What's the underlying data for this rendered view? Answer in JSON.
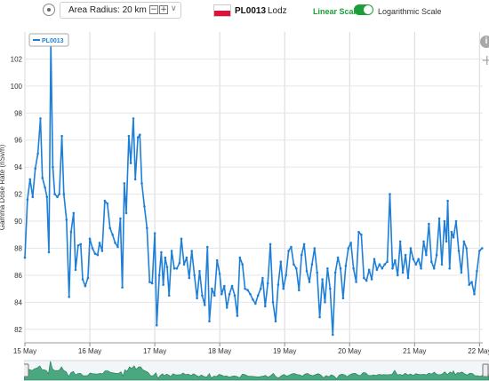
{
  "toolbar": {
    "radius_label": "Area Radius: 20 km",
    "minus_icon": "−",
    "plus_icon": "+",
    "chevron": "∨",
    "station_code": "PL0013",
    "station_city": "Lodz",
    "scale_linear": "Linear Scale",
    "scale_log": "Logarithmic Scale",
    "accent_color": "#1e9e3a"
  },
  "side_icons": {
    "info": "i",
    "plus": "+"
  },
  "chart_data": {
    "type": "line",
    "ylabel": "Gamma Dose Rate (nSv/h)",
    "ylim": [
      81,
      104
    ],
    "yticks": [
      "82",
      "84",
      "86",
      "88",
      "90",
      "92",
      "94",
      "96",
      "98",
      "100",
      "102"
    ],
    "xlim": [
      15,
      22.05
    ],
    "xticks": [
      {
        "v": 15,
        "label": "15 May"
      },
      {
        "v": 16,
        "label": "16 May"
      },
      {
        "v": 17,
        "label": "17 May"
      },
      {
        "v": 18,
        "label": "18 May"
      },
      {
        "v": 19,
        "label": "19 May"
      },
      {
        "v": 20,
        "label": "20 May"
      },
      {
        "v": 21,
        "label": "21 May"
      },
      {
        "v": 22,
        "label": "22 May"
      }
    ],
    "series": [
      {
        "name": "PL0013",
        "color": "#1e7fd8",
        "points": [
          [
            15.0,
            87.3
          ],
          [
            15.04,
            91.6
          ],
          [
            15.08,
            93.1
          ],
          [
            15.12,
            91.8
          ],
          [
            15.16,
            93.9
          ],
          [
            15.2,
            95.0
          ],
          [
            15.24,
            97.6
          ],
          [
            15.27,
            93.2
          ],
          [
            15.31,
            92.5
          ],
          [
            15.34,
            91.8
          ],
          [
            15.37,
            87.7
          ],
          [
            15.4,
            103.2
          ],
          [
            15.43,
            94.0
          ],
          [
            15.46,
            92.0
          ],
          [
            15.5,
            91.8
          ],
          [
            15.53,
            92.0
          ],
          [
            15.57,
            96.3
          ],
          [
            15.6,
            92.0
          ],
          [
            15.64,
            90.1
          ],
          [
            15.68,
            84.4
          ],
          [
            15.71,
            89.2
          ],
          [
            15.75,
            90.6
          ],
          [
            15.78,
            86.4
          ],
          [
            15.82,
            88.2
          ],
          [
            15.86,
            88.3
          ],
          [
            15.89,
            85.7
          ],
          [
            15.93,
            85.2
          ],
          [
            15.97,
            85.8
          ],
          [
            16.0,
            88.7
          ],
          [
            16.04,
            88.0
          ],
          [
            16.08,
            87.6
          ],
          [
            16.12,
            87.5
          ],
          [
            16.15,
            88.4
          ],
          [
            16.19,
            87.8
          ],
          [
            16.23,
            91.5
          ],
          [
            16.27,
            91.3
          ],
          [
            16.31,
            89.5
          ],
          [
            16.35,
            89.0
          ],
          [
            16.39,
            88.4
          ],
          [
            16.43,
            88.1
          ],
          [
            16.47,
            90.2
          ],
          [
            16.5,
            85.1
          ],
          [
            16.53,
            92.8
          ],
          [
            16.56,
            90.6
          ],
          [
            16.6,
            96.3
          ],
          [
            16.63,
            94.3
          ],
          [
            16.67,
            97.6
          ],
          [
            16.7,
            93.1
          ],
          [
            16.74,
            96.2
          ],
          [
            16.77,
            96.4
          ],
          [
            16.8,
            92.8
          ],
          [
            16.84,
            91.1
          ],
          [
            16.88,
            89.5
          ],
          [
            16.92,
            85.5
          ],
          [
            16.96,
            85.4
          ],
          [
            17.0,
            89.1
          ],
          [
            17.03,
            82.3
          ],
          [
            17.07,
            86.0
          ],
          [
            17.1,
            87.7
          ],
          [
            17.13,
            85.3
          ],
          [
            17.16,
            87.3
          ],
          [
            17.19,
            86.6
          ],
          [
            17.22,
            84.5
          ],
          [
            17.26,
            87.8
          ],
          [
            17.3,
            86.5
          ],
          [
            17.34,
            86.5
          ],
          [
            17.38,
            86.9
          ],
          [
            17.41,
            88.7
          ],
          [
            17.45,
            86.8
          ],
          [
            17.49,
            87.3
          ],
          [
            17.53,
            85.8
          ],
          [
            17.57,
            87.8
          ],
          [
            17.61,
            86.0
          ],
          [
            17.65,
            84.3
          ],
          [
            17.69,
            86.3
          ],
          [
            17.73,
            84.5
          ],
          [
            17.77,
            83.8
          ],
          [
            17.81,
            88.1
          ],
          [
            17.84,
            82.6
          ],
          [
            17.88,
            85.0
          ],
          [
            17.92,
            84.5
          ],
          [
            17.96,
            87.1
          ],
          [
            18.0,
            86.1
          ],
          [
            18.03,
            84.6
          ],
          [
            18.07,
            85.2
          ],
          [
            18.11,
            83.6
          ],
          [
            18.15,
            84.6
          ],
          [
            18.19,
            85.2
          ],
          [
            18.23,
            84.5
          ],
          [
            18.27,
            83.0
          ],
          [
            18.31,
            87.3
          ],
          [
            18.35,
            86.8
          ],
          [
            18.39,
            85.0
          ],
          [
            18.43,
            84.9
          ],
          [
            18.47,
            84.6
          ],
          [
            18.51,
            84.2
          ],
          [
            18.55,
            83.9
          ],
          [
            18.59,
            84.5
          ],
          [
            18.63,
            85.0
          ],
          [
            18.66,
            85.8
          ],
          [
            18.7,
            83.7
          ],
          [
            18.74,
            85.4
          ],
          [
            18.78,
            88.3
          ],
          [
            18.82,
            84.0
          ],
          [
            18.86,
            82.6
          ],
          [
            18.9,
            85.3
          ],
          [
            18.94,
            87.0
          ],
          [
            18.98,
            85.0
          ],
          [
            19.02,
            86.0
          ],
          [
            19.06,
            87.8
          ],
          [
            19.1,
            88.1
          ],
          [
            19.14,
            86.8
          ],
          [
            19.18,
            86.5
          ],
          [
            19.22,
            84.9
          ],
          [
            19.26,
            87.5
          ],
          [
            19.3,
            88.3
          ],
          [
            19.34,
            86.3
          ],
          [
            19.38,
            85.5
          ],
          [
            19.42,
            86.8
          ],
          [
            19.46,
            88.0
          ],
          [
            19.5,
            86.2
          ],
          [
            19.54,
            82.9
          ],
          [
            19.58,
            85.7
          ],
          [
            19.62,
            84.0
          ],
          [
            19.66,
            86.5
          ],
          [
            19.7,
            85.0
          ],
          [
            19.74,
            81.6
          ],
          [
            19.78,
            86.2
          ],
          [
            19.82,
            87.3
          ],
          [
            19.86,
            86.5
          ],
          [
            19.9,
            84.3
          ],
          [
            19.94,
            86.7
          ],
          [
            19.98,
            88.0
          ],
          [
            20.02,
            88.4
          ],
          [
            20.06,
            86.5
          ],
          [
            20.1,
            85.5
          ],
          [
            20.14,
            89.2
          ],
          [
            20.18,
            89.0
          ],
          [
            20.22,
            85.8
          ],
          [
            20.26,
            85.6
          ],
          [
            20.3,
            86.4
          ],
          [
            20.34,
            85.7
          ],
          [
            20.38,
            87.2
          ],
          [
            20.42,
            86.4
          ],
          [
            20.46,
            86.8
          ],
          [
            20.5,
            86.5
          ],
          [
            20.54,
            86.8
          ],
          [
            20.58,
            87.0
          ],
          [
            20.62,
            92.0
          ],
          [
            20.66,
            86.5
          ],
          [
            20.7,
            87.1
          ],
          [
            20.74,
            86.0
          ],
          [
            20.78,
            88.5
          ],
          [
            20.82,
            86.2
          ],
          [
            20.86,
            87.5
          ],
          [
            20.9,
            85.8
          ],
          [
            20.94,
            88.0
          ],
          [
            20.98,
            87.2
          ],
          [
            21.02,
            86.8
          ],
          [
            21.06,
            87.2
          ],
          [
            21.1,
            86.5
          ],
          [
            21.14,
            88.5
          ],
          [
            21.18,
            87.5
          ],
          [
            21.22,
            89.8
          ],
          [
            21.26,
            87.0
          ],
          [
            21.3,
            86.5
          ],
          [
            21.34,
            87.5
          ],
          [
            21.38,
            90.2
          ],
          [
            21.42,
            86.8
          ],
          [
            21.46,
            90.0
          ],
          [
            21.49,
            88.5
          ],
          [
            21.51,
            91.5
          ],
          [
            21.54,
            86.5
          ],
          [
            21.57,
            89.2
          ],
          [
            21.6,
            88.8
          ],
          [
            21.64,
            90.0
          ],
          [
            21.68,
            87.8
          ],
          [
            21.72,
            86.2
          ],
          [
            21.76,
            88.5
          ],
          [
            21.8,
            88.0
          ],
          [
            21.84,
            85.3
          ],
          [
            21.88,
            85.5
          ],
          [
            21.92,
            84.6
          ],
          [
            21.96,
            86.3
          ],
          [
            22.0,
            87.8
          ],
          [
            22.04,
            88.0
          ]
        ]
      }
    ],
    "grid": true,
    "legend": "top-left"
  }
}
